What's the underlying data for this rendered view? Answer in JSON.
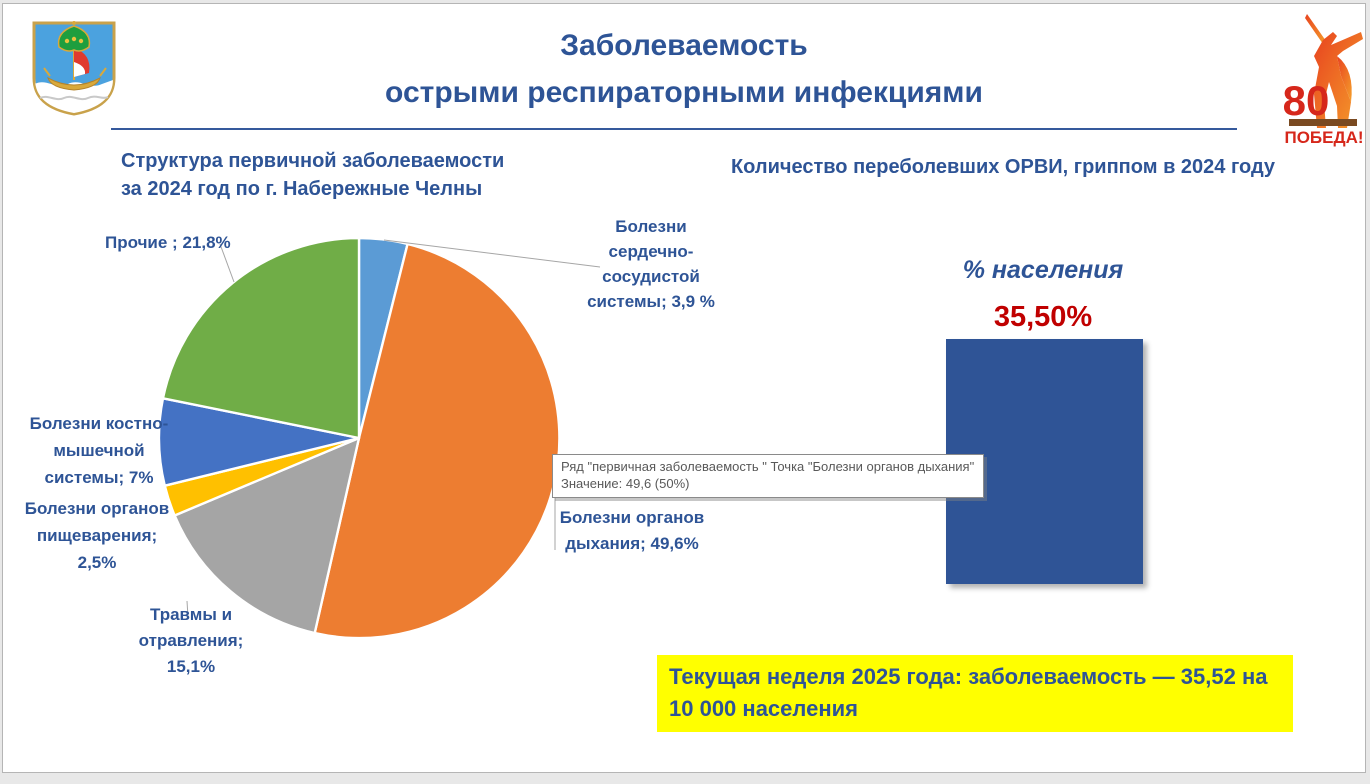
{
  "slide_title": {
    "line1": "Заболеваемость",
    "line2": "острыми респираторными инфекциями"
  },
  "icons": {
    "top_left": "naberezhnye-chelny-coat-of-arms",
    "top_right": "victory-80-logo"
  },
  "victory_logo": {
    "number": "80",
    "caption": "ПОБЕДА!"
  },
  "pie_section": {
    "title": "Структура первичной заболеваемости\nза 2024 год по г. Набережные Челны",
    "labels": {
      "other": "Прочие ; 21,8%",
      "cardio": "Болезни\nсердечно-\nсосудистой\nсистемы; 3,9 %",
      "musculo": "Болезни костно-\nмышечной\nсистемы; 7%",
      "digestive": "Болезни органов\nпищеварения;\n2,5%",
      "trauma": "Травмы и\nотравления;\n15,1%",
      "respiratory": "Болезни органов\nдыхания; 49,6%"
    }
  },
  "tooltip": {
    "line1": "Ряд \"первичная заболеваемость \" Точка \"Болезни органов дыхания\"",
    "line2": "Значение: 49,6 (50%)"
  },
  "bar_section": {
    "title": "Количество переболевших ОРВИ, гриппом в 2024 году",
    "axis_label": "% населения",
    "value_label": "35,50%"
  },
  "note_text": "Текущая неделя 2025 года: заболеваемость — 35,52 на 10 000 населения",
  "colors": {
    "accent_blue": "#2E5496",
    "value_red": "#C00000",
    "note_bg": "#FFFF00",
    "bar": "#2F5496"
  },
  "chart_data": [
    {
      "type": "pie",
      "title": "Структура первичной заболеваемости за 2024 год по г. Набережные Челны",
      "series_name": "первичная заболеваемость",
      "start_angle_deg": 0,
      "direction": "clockwise",
      "slices": [
        {
          "label": "Болезни сердечно-сосудистой системы",
          "value": 3.9,
          "color": "#5B9BD5"
        },
        {
          "label": "Болезни органов дыхания",
          "value": 49.6,
          "color": "#ED7D31"
        },
        {
          "label": "Травмы и отравления",
          "value": 15.1,
          "color": "#A5A5A5"
        },
        {
          "label": "Болезни органов пищеварения",
          "value": 2.5,
          "color": "#FFC000"
        },
        {
          "label": "Болезни костно-мышечной системы",
          "value": 7,
          "color": "#4472C4"
        },
        {
          "label": "Прочие",
          "value": 21.8,
          "color": "#70AD47"
        }
      ]
    },
    {
      "type": "bar",
      "title": "Количество переболевших ОРВИ, гриппом в 2024 году",
      "categories": [
        "% населения"
      ],
      "values": [
        35.5
      ],
      "value_label": "35,50%",
      "bar_color": "#2F5496",
      "legend_position": "none",
      "grid": false
    }
  ]
}
